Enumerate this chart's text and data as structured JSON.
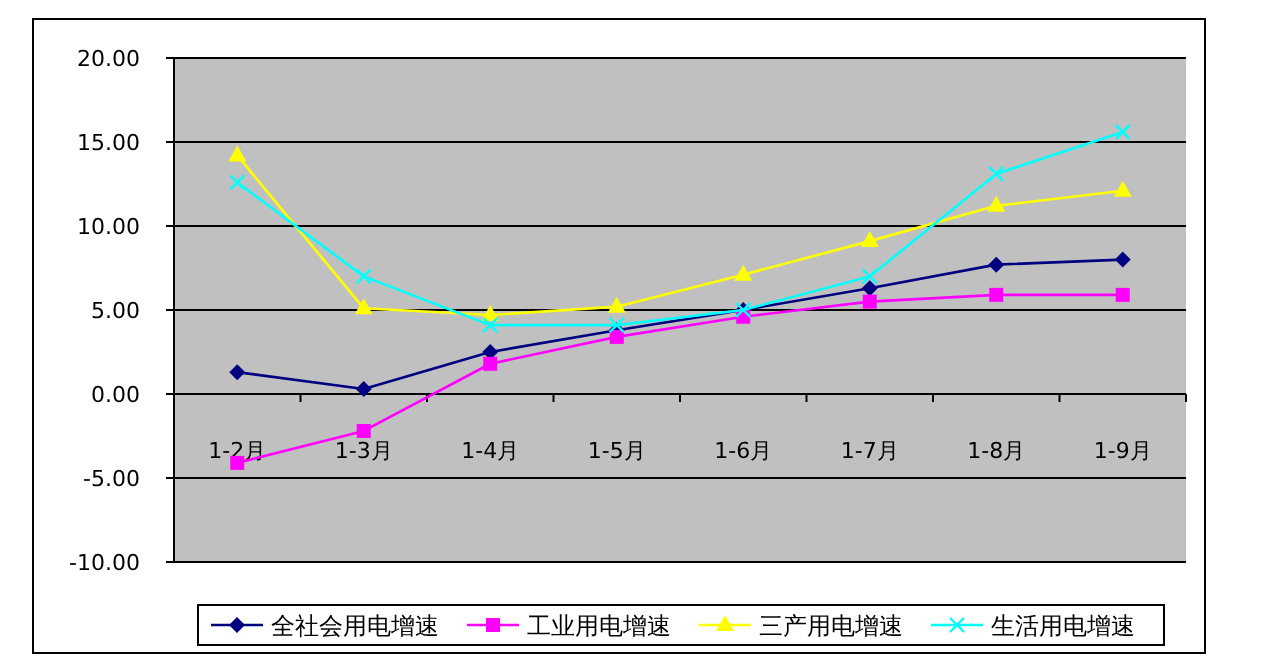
{
  "chart_data": {
    "type": "line",
    "categories": [
      "1-2月",
      "1-3月",
      "1-4月",
      "1-5月",
      "1-6月",
      "1-7月",
      "1-8月",
      "1-9月"
    ],
    "series": [
      {
        "name": "全社会用电增速",
        "color": "#000080",
        "marker": "diamond",
        "values": [
          1.3,
          0.3,
          2.5,
          3.8,
          5.0,
          6.3,
          7.7,
          8.0
        ]
      },
      {
        "name": "工业用电增速",
        "color": "#ff00ff",
        "marker": "square",
        "values": [
          -4.1,
          -2.2,
          1.8,
          3.4,
          4.6,
          5.5,
          5.9,
          5.9
        ]
      },
      {
        "name": "三产用电增速",
        "color": "#ffff00",
        "marker": "triangle",
        "values": [
          14.2,
          5.1,
          4.7,
          5.2,
          7.1,
          9.1,
          11.2,
          12.1
        ]
      },
      {
        "name": "生活用电增速",
        "color": "#00ffff",
        "marker": "cross",
        "values": [
          12.6,
          7.0,
          4.1,
          4.1,
          5.0,
          7.0,
          13.1,
          15.6
        ]
      }
    ],
    "ylim": [
      -10,
      20
    ],
    "yticks": [
      {
        "value": -10,
        "label": "-10.00"
      },
      {
        "value": -5,
        "label": "-5.00"
      },
      {
        "value": 0,
        "label": "0.00"
      },
      {
        "value": 5,
        "label": "5.00"
      },
      {
        "value": 10,
        "label": "10.00"
      },
      {
        "value": 15,
        "label": "15.00"
      },
      {
        "value": 20,
        "label": "20.00"
      }
    ],
    "grid": "y",
    "legend": "bottom",
    "line_style": "solid"
  }
}
